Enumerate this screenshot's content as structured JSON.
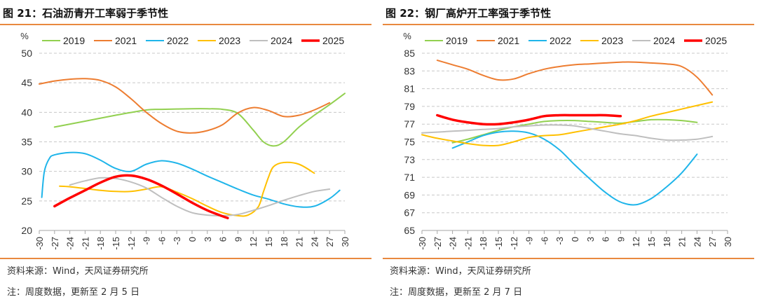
{
  "charts": [
    {
      "title": "图 21：石油沥青开工率弱于季节性",
      "source": "资料来源：Wind，天风证券研究所",
      "note": "注：周度数据，更新至 2 月 5 日",
      "chart_data": {
        "type": "line",
        "ylabel": "%",
        "xlabel": "",
        "ylim": [
          20,
          50
        ],
        "yticks": [
          20,
          25,
          30,
          35,
          40,
          45,
          50
        ],
        "xlim": [
          -30,
          30
        ],
        "xticks": [
          -30,
          -27,
          -24,
          -21,
          -18,
          -15,
          -12,
          -9,
          -6,
          -3,
          0,
          3,
          6,
          9,
          12,
          15,
          18,
          21,
          24,
          27,
          30
        ],
        "grid": "horizontal-dashed",
        "legend": "top",
        "series": [
          {
            "name": "2019",
            "color": "#92d050",
            "width": 2,
            "x": [
              -27,
              -21,
              -15,
              -9,
              -6,
              0,
              3,
              6,
              9,
              12,
              14,
              16,
              18,
              21,
              24,
              27,
              30
            ],
            "y": [
              37.5,
              38.5,
              39.5,
              40.4,
              40.5,
              40.6,
              40.6,
              40.5,
              39.8,
              37.0,
              35.0,
              34.3,
              35.0,
              37.5,
              39.5,
              41.3,
              43.2
            ]
          },
          {
            "name": "2021",
            "color": "#ed7d31",
            "width": 2,
            "x": [
              -30,
              -27,
              -24,
              -21,
              -18,
              -15,
              -12,
              -9,
              -6,
              -3,
              0,
              3,
              6,
              9,
              12,
              15,
              18,
              21,
              24,
              27
            ],
            "y": [
              44.8,
              45.3,
              45.6,
              45.7,
              45.4,
              44.3,
              42.3,
              40.0,
              38.1,
              36.8,
              36.5,
              36.9,
              37.9,
              39.9,
              40.8,
              40.3,
              39.3,
              39.5,
              40.4,
              41.6
            ]
          },
          {
            "name": "2022",
            "color": "#1fb5ea",
            "width": 2,
            "x": [
              -29.5,
              -29.0,
              -28.0,
              -27,
              -24,
              -21,
              -18,
              -15,
              -12,
              -9,
              -6,
              -3,
              0,
              3,
              6,
              9,
              12,
              15,
              18,
              21,
              24,
              27,
              29
            ],
            "y": [
              25.6,
              30.0,
              32.2,
              32.8,
              33.2,
              33.0,
              31.9,
              30.5,
              30.0,
              31.2,
              31.8,
              31.4,
              30.4,
              29.2,
              28.1,
              27.0,
              26.0,
              25.3,
              24.5,
              24.0,
              24.1,
              25.4,
              26.8
            ]
          },
          {
            "name": "2023",
            "color": "#ffc000",
            "width": 2,
            "x": [
              -26,
              -24,
              -21,
              -18,
              -15,
              -12,
              -9,
              -6,
              -3,
              0,
              3,
              6,
              9,
              11,
              13,
              14,
              15,
              16,
              18,
              21,
              24
            ],
            "y": [
              27.5,
              27.4,
              27.1,
              26.8,
              26.6,
              26.6,
              27.0,
              27.4,
              26.5,
              25.4,
              24.1,
              23.0,
              22.5,
              22.6,
              24.0,
              26.5,
              29.0,
              30.8,
              31.5,
              31.2,
              29.7
            ]
          },
          {
            "name": "2024",
            "color": "#bfbfbf",
            "width": 2,
            "x": [
              -24,
              -21,
              -18,
              -15,
              -12,
              -9,
              -6,
              -3,
              0,
              3,
              6,
              9,
              12,
              15,
              18,
              21,
              24,
              27
            ],
            "y": [
              27.7,
              28.4,
              28.9,
              28.8,
              28.2,
              27.2,
              25.6,
              24.1,
              23.0,
              22.6,
              22.5,
              22.7,
              23.4,
              24.2,
              25.1,
              25.9,
              26.6,
              27.0
            ]
          },
          {
            "name": "2025",
            "color": "#ff0000",
            "width": 3.5,
            "x": [
              -27,
              -24,
              -21,
              -18,
              -15,
              -12,
              -9,
              -6,
              -3,
              0,
              3,
              6,
              7
            ],
            "y": [
              24.1,
              25.5,
              26.8,
              28.1,
              29.1,
              29.3,
              28.7,
              27.6,
              26.2,
              24.7,
              23.4,
              22.4,
              22.1
            ]
          }
        ]
      }
    },
    {
      "title": "图 22：钢厂高炉开工率强于季节性",
      "source": "资料来源：Wind，天风证券研究所",
      "note": "注：周度数据，更新至 2 月 7 日",
      "chart_data": {
        "type": "line",
        "ylabel": "%",
        "xlabel": "",
        "ylim": [
          65,
          85
        ],
        "yticks": [
          65,
          67,
          69,
          71,
          73,
          75,
          77,
          79,
          81,
          83,
          85
        ],
        "xlim": [
          -30,
          30
        ],
        "xticks": [
          -30,
          -27,
          -24,
          -21,
          -18,
          -15,
          -12,
          -9,
          -6,
          -3,
          0,
          3,
          6,
          9,
          12,
          15,
          18,
          21,
          24,
          27,
          30
        ],
        "grid": "horizontal-dashed",
        "legend": "top",
        "series": [
          {
            "name": "2019",
            "color": "#92d050",
            "width": 2,
            "x": [
              -24,
              -21,
              -18,
              -15,
              -12,
              -9,
              -6,
              -3,
              0,
              3,
              6,
              9,
              12,
              15,
              18,
              21,
              24
            ],
            "y": [
              74.9,
              75.3,
              75.8,
              76.3,
              76.7,
              77.0,
              77.3,
              77.4,
              77.4,
              77.3,
              77.2,
              77.1,
              77.3,
              77.5,
              77.5,
              77.4,
              77.2
            ]
          },
          {
            "name": "2021",
            "color": "#ed7d31",
            "width": 2,
            "x": [
              -27,
              -24,
              -21,
              -18,
              -15,
              -12,
              -9,
              -6,
              -3,
              0,
              3,
              6,
              9,
              12,
              15,
              18,
              21,
              24,
              27
            ],
            "y": [
              84.2,
              83.7,
              83.2,
              82.5,
              82.0,
              82.1,
              82.7,
              83.2,
              83.5,
              83.7,
              83.8,
              83.9,
              84.0,
              84.0,
              83.9,
              83.8,
              83.5,
              82.3,
              80.3
            ]
          },
          {
            "name": "2022",
            "color": "#1fb5ea",
            "width": 2,
            "x": [
              -24,
              -21,
              -18,
              -15,
              -12,
              -9,
              -6,
              -3,
              0,
              3,
              6,
              9,
              12,
              15,
              18,
              21,
              24
            ],
            "y": [
              74.3,
              75.0,
              75.7,
              76.1,
              76.2,
              76.0,
              75.3,
              74.1,
              72.4,
              70.8,
              69.3,
              68.2,
              67.9,
              68.6,
              69.9,
              71.5,
              73.6
            ]
          },
          {
            "name": "2023",
            "color": "#ffc000",
            "width": 2,
            "x": [
              -30,
              -27,
              -24,
              -21,
              -18,
              -15,
              -12,
              -9,
              -6,
              -3,
              0,
              3,
              6,
              9,
              12,
              15,
              18,
              21,
              24,
              27
            ],
            "y": [
              75.8,
              75.4,
              75.1,
              74.8,
              74.6,
              74.6,
              75.0,
              75.5,
              75.7,
              75.8,
              76.1,
              76.4,
              76.7,
              77.0,
              77.4,
              77.9,
              78.3,
              78.7,
              79.1,
              79.5
            ]
          },
          {
            "name": "2024",
            "color": "#bfbfbf",
            "width": 2,
            "x": [
              -30,
              -27,
              -24,
              -21,
              -18,
              -15,
              -12,
              -9,
              -6,
              -3,
              0,
              3,
              6,
              9,
              12,
              15,
              18,
              21,
              24,
              27
            ],
            "y": [
              76.0,
              76.1,
              76.2,
              76.3,
              76.4,
              76.5,
              76.7,
              76.8,
              76.9,
              76.9,
              76.8,
              76.5,
              76.2,
              75.9,
              75.7,
              75.4,
              75.2,
              75.2,
              75.3,
              75.6
            ]
          },
          {
            "name": "2025",
            "color": "#ff0000",
            "width": 3.5,
            "x": [
              -27,
              -24,
              -21,
              -18,
              -15,
              -12,
              -9,
              -6,
              -3,
              0,
              3,
              6,
              9
            ],
            "y": [
              78.0,
              77.5,
              77.2,
              77.0,
              77.0,
              77.2,
              77.5,
              77.9,
              78.0,
              78.0,
              78.0,
              78.0,
              77.9
            ]
          }
        ]
      }
    }
  ]
}
